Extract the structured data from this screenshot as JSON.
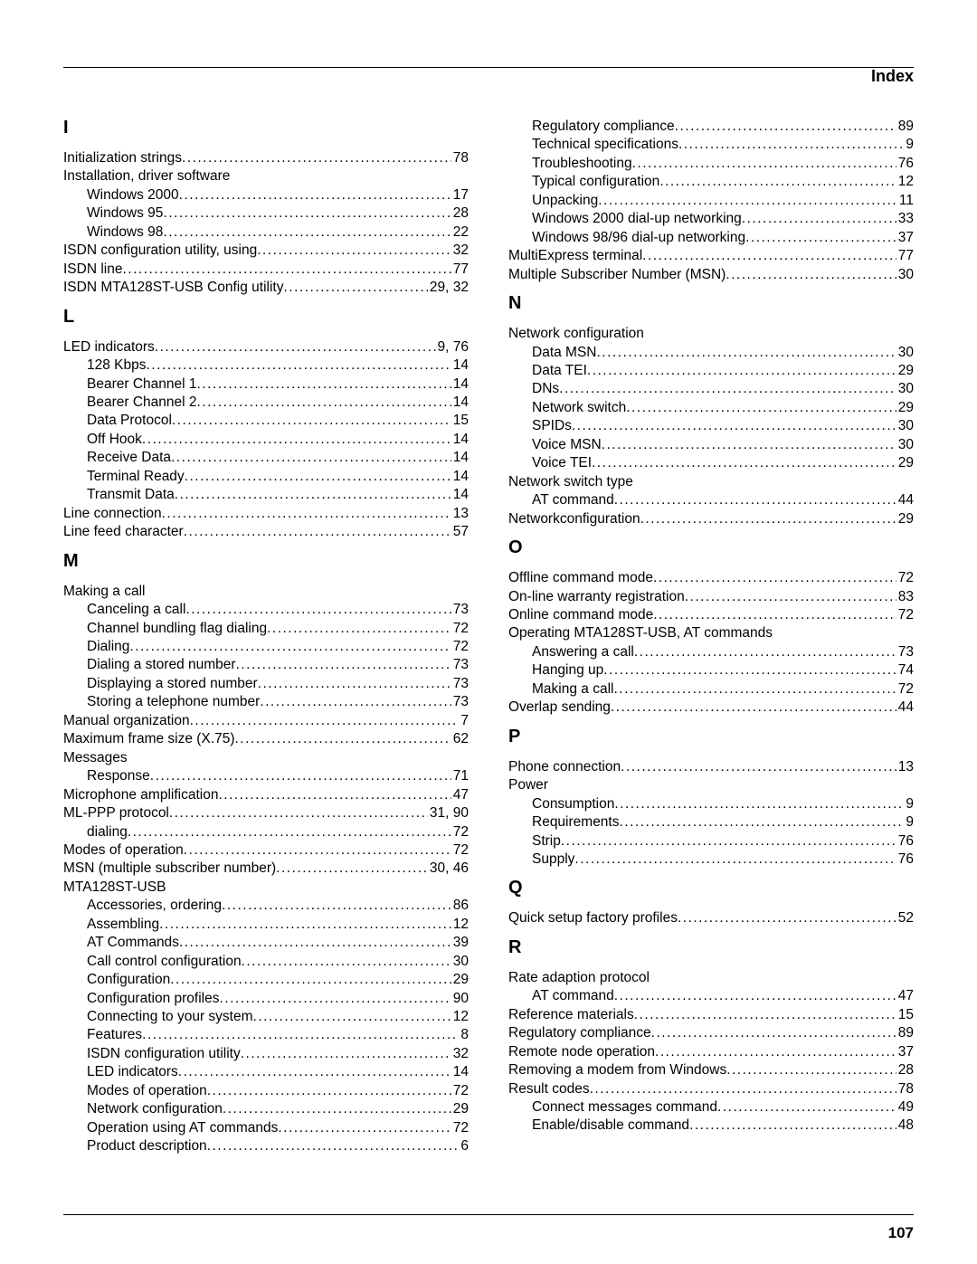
{
  "header": {
    "title": "Index"
  },
  "page_number": "107",
  "columns": [
    [
      {
        "type": "letter",
        "text": "I"
      },
      {
        "type": "entry",
        "label": "Initialization strings",
        "page": "78"
      },
      {
        "type": "heading",
        "label": "Installation, driver software"
      },
      {
        "type": "sub",
        "label": "Windows 2000",
        "page": "17"
      },
      {
        "type": "sub",
        "label": "Windows 95",
        "page": "28"
      },
      {
        "type": "sub",
        "label": "Windows 98",
        "page": "22"
      },
      {
        "type": "entry",
        "label": "ISDN configuration utility, using",
        "page": "32"
      },
      {
        "type": "entry",
        "label": "ISDN line",
        "page": "77"
      },
      {
        "type": "entry",
        "label": "ISDN MTA128ST-USB Config utility",
        "page": "29,  32"
      },
      {
        "type": "letter",
        "text": "L"
      },
      {
        "type": "entry",
        "label": "LED indicators",
        "page": "9,  76"
      },
      {
        "type": "sub",
        "label": "128 Kbps",
        "page": "14"
      },
      {
        "type": "sub",
        "label": "Bearer Channel 1",
        "page": "14"
      },
      {
        "type": "sub",
        "label": "Bearer Channel 2",
        "page": "14"
      },
      {
        "type": "sub",
        "label": "Data Protocol",
        "page": "15"
      },
      {
        "type": "sub",
        "label": "Off Hook",
        "page": "14"
      },
      {
        "type": "sub",
        "label": "Receive Data",
        "page": "14"
      },
      {
        "type": "sub",
        "label": "Terminal Ready",
        "page": "14"
      },
      {
        "type": "sub",
        "label": "Transmit Data",
        "page": "14"
      },
      {
        "type": "entry",
        "label": "Line connection",
        "page": "13"
      },
      {
        "type": "entry",
        "label": "Line feed character",
        "page": "57"
      },
      {
        "type": "letter",
        "text": "M"
      },
      {
        "type": "heading",
        "label": "Making a call"
      },
      {
        "type": "sub",
        "label": "Canceling a call",
        "page": "73"
      },
      {
        "type": "sub",
        "label": "Channel bundling flag dialing",
        "page": "72"
      },
      {
        "type": "sub",
        "label": "Dialing",
        "page": "72"
      },
      {
        "type": "sub",
        "label": "Dialing a stored number",
        "page": "73"
      },
      {
        "type": "sub",
        "label": "Displaying a stored number",
        "page": "73"
      },
      {
        "type": "sub",
        "label": "Storing a telephone number",
        "page": "73"
      },
      {
        "type": "entry",
        "label": "Manual organization",
        "page": " 7"
      },
      {
        "type": "entry",
        "label": "Maximum frame size (X.75)",
        "page": "62"
      },
      {
        "type": "heading",
        "label": "Messages"
      },
      {
        "type": "sub",
        "label": "Response",
        "page": "71"
      },
      {
        "type": "entry",
        "label": "Microphone amplification",
        "page": "47"
      },
      {
        "type": "entry",
        "label": "ML-PPP protocol",
        "page": "31,  90"
      },
      {
        "type": "sub",
        "label": "dialing",
        "page": "72"
      },
      {
        "type": "entry",
        "label": "Modes of operation",
        "page": "72"
      },
      {
        "type": "entry",
        "label": "MSN (multiple subscriber number)",
        "page": "30,  46"
      },
      {
        "type": "heading",
        "label": "MTA128ST-USB"
      },
      {
        "type": "sub",
        "label": "Accessories, ordering",
        "page": "86"
      },
      {
        "type": "sub",
        "label": "Assembling",
        "page": "12"
      },
      {
        "type": "sub",
        "label": "AT Commands",
        "page": "39"
      },
      {
        "type": "sub",
        "label": "Call control configuration",
        "page": "30"
      },
      {
        "type": "sub",
        "label": "Configuration",
        "page": "29"
      },
      {
        "type": "sub",
        "label": "Configuration profiles",
        "page": "90"
      },
      {
        "type": "sub",
        "label": "Connecting to your system",
        "page": "12"
      },
      {
        "type": "sub",
        "label": "Features",
        "page": " 8"
      },
      {
        "type": "sub",
        "label": "ISDN configuration utility",
        "page": "32"
      },
      {
        "type": "sub",
        "label": "LED indicators",
        "page": "14"
      },
      {
        "type": "sub",
        "label": "Modes of operation",
        "page": "72"
      },
      {
        "type": "sub",
        "label": "Network configuration",
        "page": "29"
      },
      {
        "type": "sub",
        "label": "Operation using AT commands",
        "page": "72"
      },
      {
        "type": "sub",
        "label": "Product description",
        "page": " 6"
      }
    ],
    [
      {
        "type": "sub",
        "label": "Regulatory compliance",
        "page": "89"
      },
      {
        "type": "sub",
        "label": "Technical specifications",
        "page": " 9"
      },
      {
        "type": "sub",
        "label": "Troubleshooting",
        "page": "76"
      },
      {
        "type": "sub",
        "label": "Typical configuration",
        "page": "12"
      },
      {
        "type": "sub",
        "label": "Unpacking",
        "page": "11"
      },
      {
        "type": "sub",
        "label": "Windows 2000 dial-up networking",
        "page": "33"
      },
      {
        "type": "sub",
        "label": "Windows 98/96 dial-up networking",
        "page": "37"
      },
      {
        "type": "entry",
        "label": "MultiExpress terminal",
        "page": "77"
      },
      {
        "type": "entry",
        "label": "Multiple Subscriber Number (MSN)",
        "page": "30"
      },
      {
        "type": "letter",
        "text": "N"
      },
      {
        "type": "heading",
        "label": "Network configuration"
      },
      {
        "type": "sub",
        "label": "Data MSN",
        "page": "30"
      },
      {
        "type": "sub",
        "label": "Data TEI",
        "page": "29"
      },
      {
        "type": "sub",
        "label": "DNs",
        "page": "30"
      },
      {
        "type": "sub",
        "label": "Network switch",
        "page": "29"
      },
      {
        "type": "sub",
        "label": "SPIDs",
        "page": "30"
      },
      {
        "type": "sub",
        "label": "Voice MSN",
        "page": "30"
      },
      {
        "type": "sub",
        "label": "Voice TEI",
        "page": "29"
      },
      {
        "type": "heading",
        "label": "Network switch type"
      },
      {
        "type": "sub",
        "label": "AT command",
        "page": "44"
      },
      {
        "type": "entry",
        "label": "Networkconfiguration",
        "page": "29"
      },
      {
        "type": "letter",
        "text": "O"
      },
      {
        "type": "entry",
        "label": "Offline command mode",
        "page": "72"
      },
      {
        "type": "entry",
        "label": "On-line warranty registration",
        "page": "83"
      },
      {
        "type": "entry",
        "label": "Online command mode",
        "page": "72"
      },
      {
        "type": "heading",
        "label": "Operating MTA128ST-USB, AT commands"
      },
      {
        "type": "sub",
        "label": "Answering a call",
        "page": "73"
      },
      {
        "type": "sub",
        "label": "Hanging up",
        "page": "74"
      },
      {
        "type": "sub",
        "label": "Making a call",
        "page": "72"
      },
      {
        "type": "entry",
        "label": "Overlap sending",
        "page": "44"
      },
      {
        "type": "letter",
        "text": "P"
      },
      {
        "type": "entry",
        "label": "Phone connection",
        "page": "13"
      },
      {
        "type": "heading",
        "label": "Power"
      },
      {
        "type": "sub",
        "label": "Consumption",
        "page": " 9"
      },
      {
        "type": "sub",
        "label": "Requirements",
        "page": " 9"
      },
      {
        "type": "sub",
        "label": "Strip",
        "page": "76"
      },
      {
        "type": "sub",
        "label": "Supply",
        "page": "76"
      },
      {
        "type": "letter",
        "text": "Q"
      },
      {
        "type": "entry",
        "label": "Quick setup factory profiles",
        "page": "52"
      },
      {
        "type": "letter",
        "text": "R"
      },
      {
        "type": "heading",
        "label": "Rate adaption protocol"
      },
      {
        "type": "sub",
        "label": "AT command",
        "page": "47"
      },
      {
        "type": "entry",
        "label": "Reference materials",
        "page": "15"
      },
      {
        "type": "entry",
        "label": "Regulatory compliance",
        "page": "89"
      },
      {
        "type": "entry",
        "label": "Remote node operation",
        "page": "37"
      },
      {
        "type": "entry",
        "label": "Removing a modem from Windows",
        "page": "28"
      },
      {
        "type": "entry",
        "label": "Result codes",
        "page": "78"
      },
      {
        "type": "sub",
        "label": "Connect messages command",
        "page": "49"
      },
      {
        "type": "sub",
        "label": "Enable/disable command",
        "page": "48"
      }
    ]
  ]
}
